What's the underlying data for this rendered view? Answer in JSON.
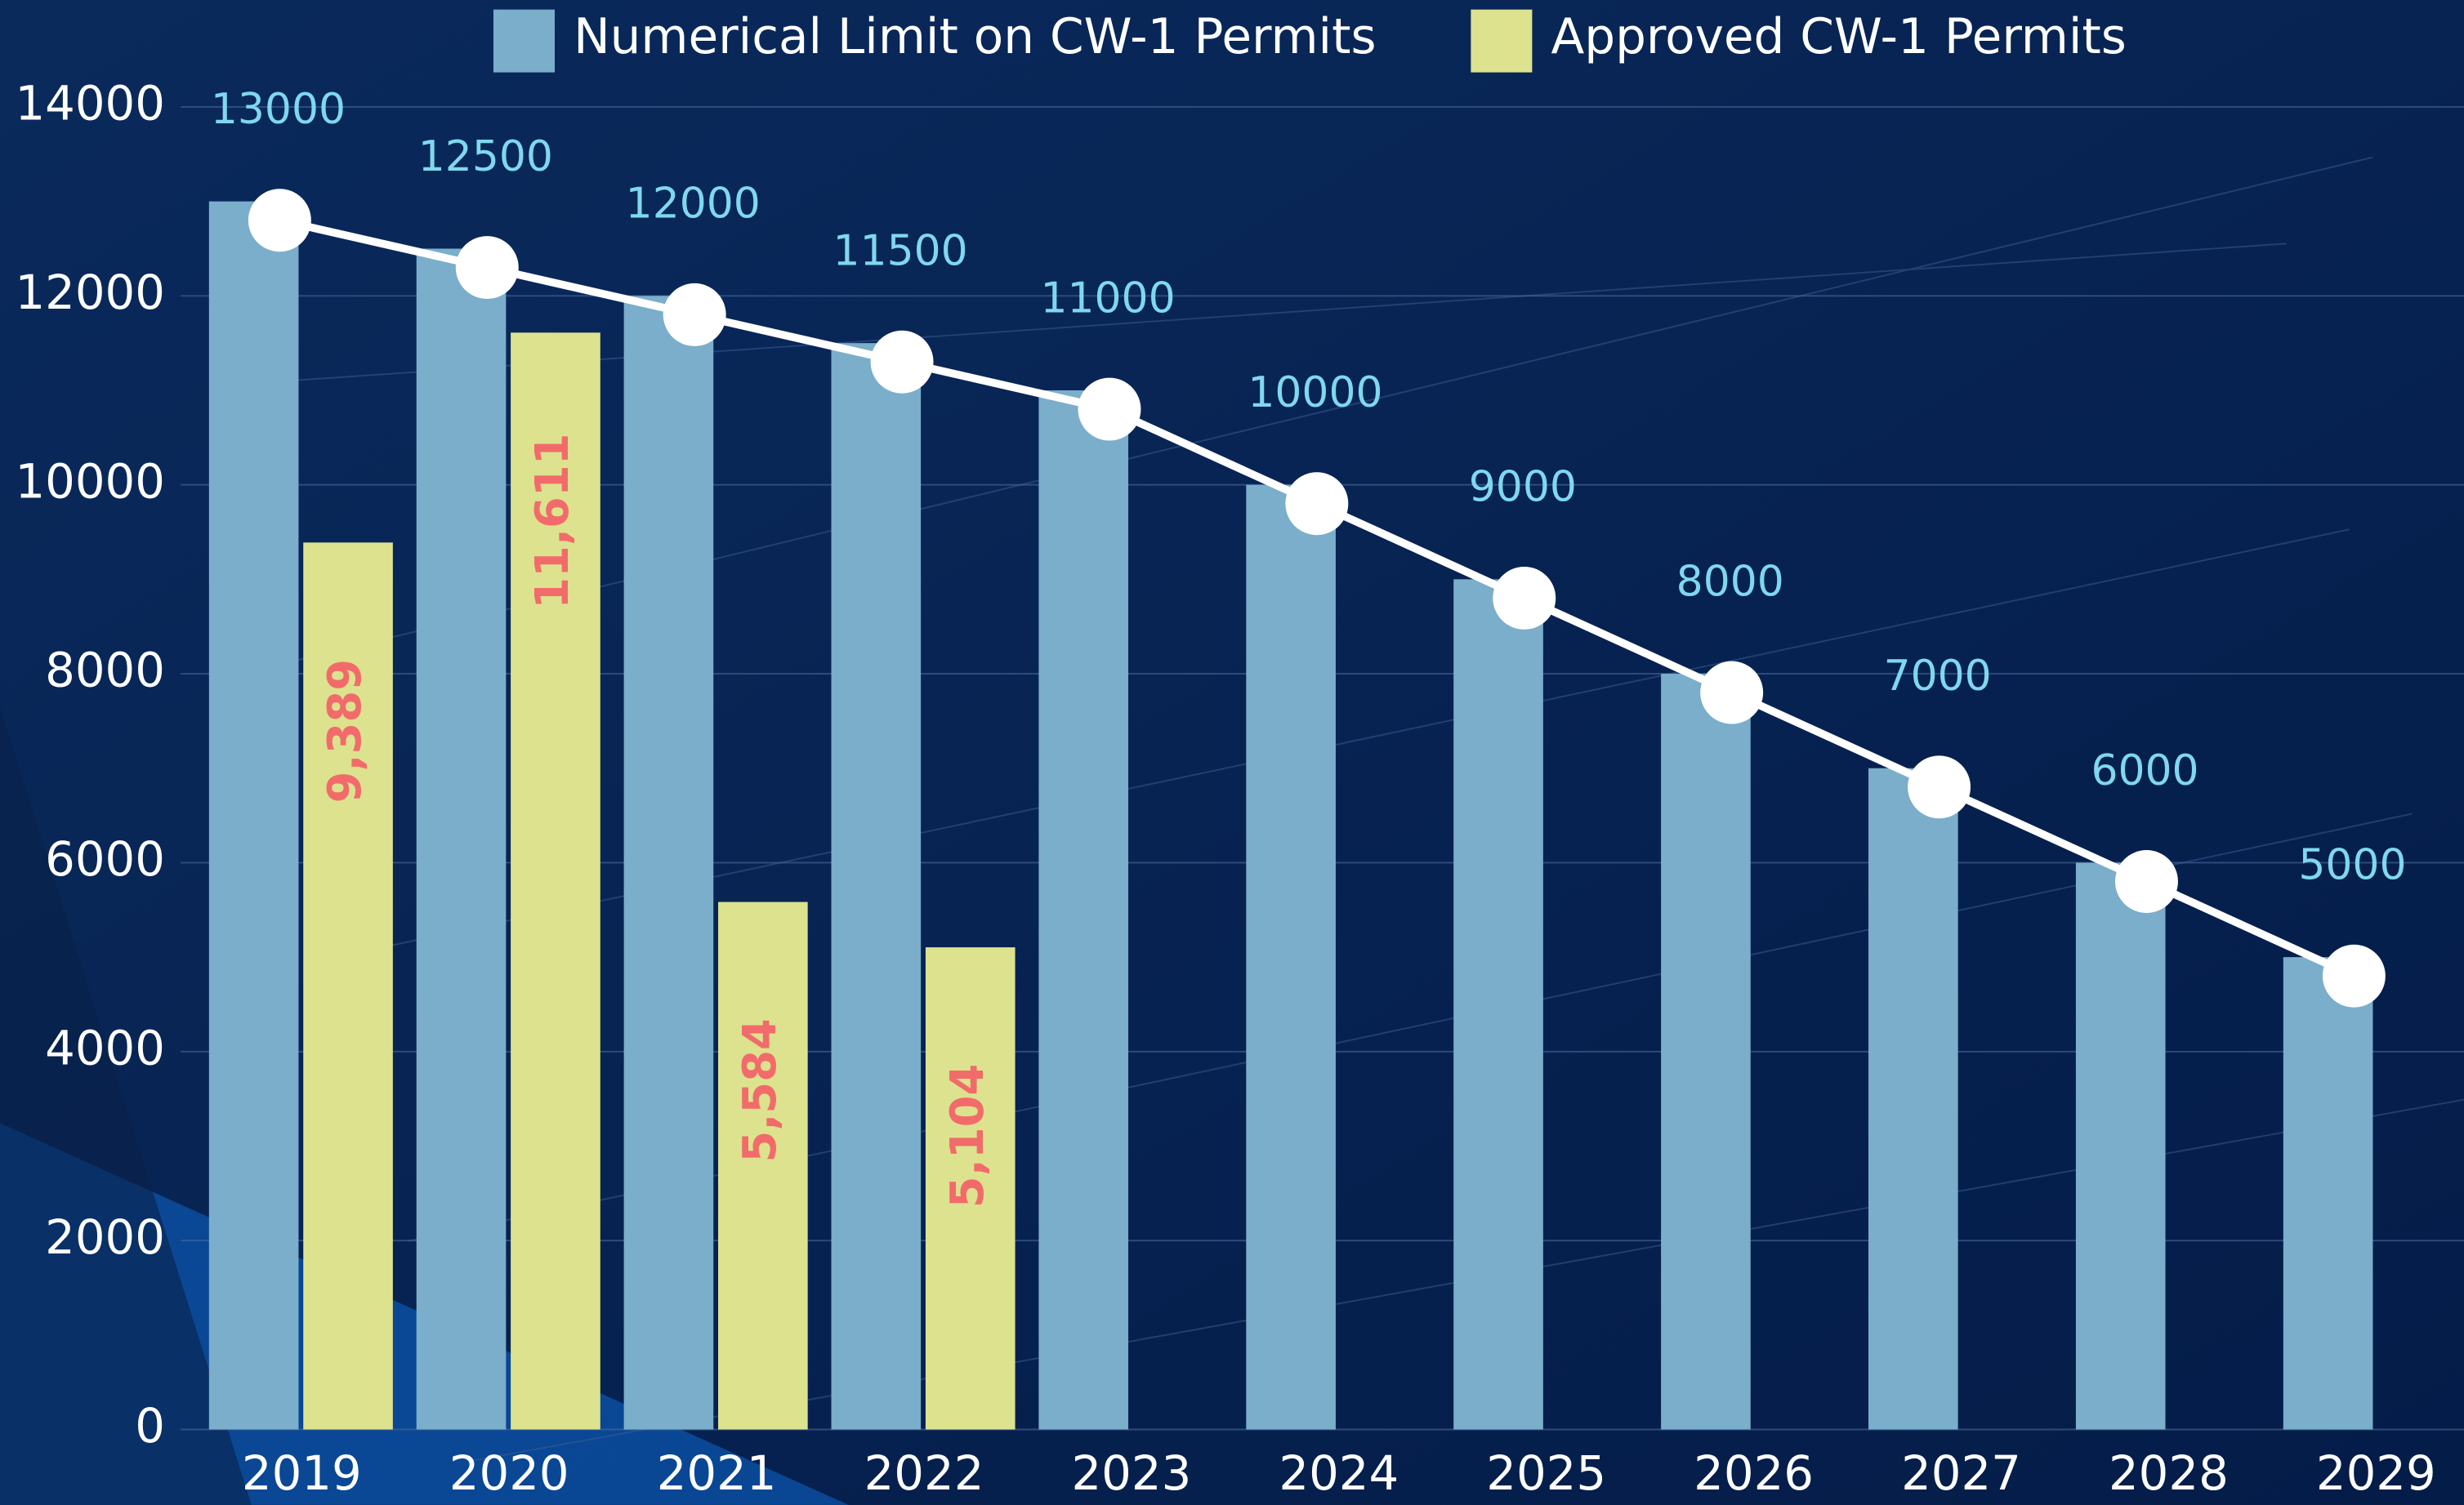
{
  "chart_data": {
    "type": "bar",
    "categories": [
      "2019",
      "2020",
      "2021",
      "2022",
      "2023",
      "2024",
      "2025",
      "2026",
      "2027",
      "2028",
      "2029"
    ],
    "series": [
      {
        "name": "Numerical Limit on CW-1 Permits",
        "color": "#7aaecb",
        "values": [
          13000,
          12500,
          12000,
          11500,
          11000,
          10000,
          9000,
          8000,
          7000,
          6000,
          5000
        ]
      },
      {
        "name": "Approved CW-1 Permits",
        "color": "#dde28e",
        "values": [
          9389,
          11611,
          5584,
          5104,
          null,
          null,
          null,
          null,
          null,
          null,
          null
        ],
        "value_labels": [
          "9,389",
          "11,611",
          "5,584",
          "5,104",
          null,
          null,
          null,
          null,
          null,
          null,
          null
        ]
      }
    ],
    "ylim": [
      0,
      14000
    ],
    "yticks": [
      0,
      2000,
      4000,
      6000,
      8000,
      10000,
      12000,
      14000
    ],
    "grid": true,
    "legend": "top",
    "line_color": "#ffffff"
  }
}
